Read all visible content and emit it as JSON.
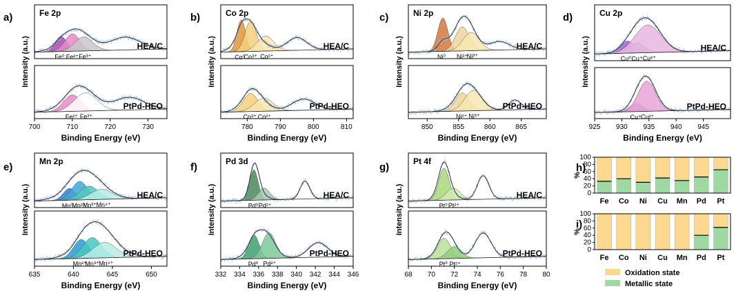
{
  "legend": {
    "oxidation": "Oxidation state",
    "metallic": "Metallic state",
    "colors": {
      "oxidation": "#fcd98e",
      "metallic": "#9fd8a0"
    }
  },
  "chart_data": [
    {
      "id": "a",
      "type": "line",
      "label": "a)",
      "title": "Fe 2p",
      "xlabel": "Binding Energy (eV)",
      "ylabel": "Intensity (a.u.)",
      "xlim": [
        700,
        735
      ],
      "x_ticks": [
        "700",
        "710",
        "720",
        "730"
      ],
      "x_tick_values": [
        700,
        710,
        720,
        730
      ],
      "samples": [
        {
          "name": "HEA/C",
          "peaks": [
            {
              "label": "Fe⁰",
              "center": 707,
              "width": 1.6,
              "height": 0.45,
              "color": "#a34fb1"
            },
            {
              "label": "Fe²⁺",
              "center": 710,
              "width": 2.0,
              "height": 0.52,
              "color": "#e88ac8"
            },
            {
              "label": "Fe³⁺",
              "center": 713,
              "width": 2.4,
              "height": 0.42,
              "color": "#c8c8c8"
            }
          ],
          "envelope": [
            {
              "center": 711,
              "width": 4,
              "height": 0.55
            },
            {
              "center": 724,
              "width": 4,
              "height": 0.45
            }
          ]
        },
        {
          "name": "PtPd-HEO",
          "peaks": [
            {
              "label": "Fe²⁺",
              "center": 710,
              "width": 2.3,
              "height": 0.5,
              "color": "#e88ac8"
            },
            {
              "label": "Fe³⁺",
              "center": 713.5,
              "width": 3,
              "height": 0.55,
              "color": "#ffffff"
            }
          ],
          "envelope": [
            {
              "center": 712,
              "width": 4,
              "height": 0.65
            },
            {
              "center": 725,
              "width": 4,
              "height": 0.45
            }
          ]
        }
      ]
    },
    {
      "id": "b",
      "type": "line",
      "label": "b)",
      "title": "Co 2p",
      "xlabel": "Binding Energy (eV)",
      "ylabel": "Intensity (a.u.)",
      "xlim": [
        772,
        812
      ],
      "x_ticks": [
        "780",
        "790",
        "800",
        "810"
      ],
      "x_tick_values": [
        780,
        790,
        800,
        810
      ],
      "samples": [
        {
          "name": "HEA/C",
          "peaks": [
            {
              "label": "Co⁰",
              "center": 778.2,
              "width": 1.3,
              "height": 0.95,
              "color": "#e2973a"
            },
            {
              "label": "Co³⁺",
              "center": 781,
              "width": 1.7,
              "height": 0.9,
              "color": "#f4d17a"
            },
            {
              "label": "Co²⁺",
              "center": 785.5,
              "width": 2.5,
              "height": 0.45,
              "color": "#f6e6b0"
            }
          ],
          "envelope": [
            {
              "center": 780,
              "width": 3,
              "height": 0.8
            },
            {
              "center": 795,
              "width": 3,
              "height": 0.45
            }
          ]
        },
        {
          "name": "PtPd-HEO",
          "peaks": [
            {
              "label": "Co³⁺",
              "center": 781,
              "width": 2.2,
              "height": 0.55,
              "color": "#f4d17a"
            },
            {
              "label": "Co²⁺",
              "center": 785,
              "width": 2.8,
              "height": 0.4,
              "color": "#f6e6b0"
            }
          ],
          "envelope": [
            {
              "center": 781.5,
              "width": 3,
              "height": 0.6
            },
            {
              "center": 797,
              "width": 3.5,
              "height": 0.4
            }
          ]
        }
      ]
    },
    {
      "id": "c",
      "type": "line",
      "label": "c)",
      "title": "Ni 2p",
      "xlabel": "Binding Energy (eV)",
      "ylabel": "Intensity (a.u.)",
      "xlim": [
        847,
        869
      ],
      "x_ticks": [
        "850",
        "855",
        "860",
        "865"
      ],
      "x_tick_values": [
        850,
        855,
        860,
        865
      ],
      "samples": [
        {
          "name": "HEA/C",
          "peaks": [
            {
              "label": "Ni⁰",
              "center": 852.5,
              "width": 0.8,
              "height": 1.0,
              "color": "#d2783c"
            },
            {
              "label": "Ni²⁺",
              "center": 855.6,
              "width": 1.1,
              "height": 0.72,
              "color": "#f0d49a"
            },
            {
              "label": "Ni³⁺",
              "center": 857,
              "width": 1.3,
              "height": 0.55,
              "color": "#f6e6b0"
            }
          ],
          "envelope": [
            {
              "center": 855.8,
              "width": 1.6,
              "height": 0.9
            },
            {
              "center": 861.5,
              "width": 1.6,
              "height": 0.3
            }
          ]
        },
        {
          "name": "PtPd-HEO",
          "peaks": [
            {
              "label": "Ni²⁺",
              "center": 855.6,
              "width": 1.1,
              "height": 0.55,
              "color": "#f0d49a"
            },
            {
              "label": "Ni³⁺",
              "center": 857.4,
              "width": 1.4,
              "height": 0.62,
              "color": "#f6e6b0"
            }
          ],
          "envelope": [
            {
              "center": 856.5,
              "width": 1.8,
              "height": 0.7
            },
            {
              "center": 864,
              "width": 1,
              "height": 0.35
            }
          ]
        }
      ]
    },
    {
      "id": "d",
      "type": "line",
      "label": "d)",
      "title": "Cu 2p",
      "xlabel": "Binding Energy (eV)",
      "ylabel": "Intensity (a.u.)",
      "xlim": [
        925,
        950
      ],
      "x_ticks": [
        "925",
        "930",
        "935",
        "940",
        "945"
      ],
      "x_tick_values": [
        925,
        930,
        935,
        940,
        945
      ],
      "samples": [
        {
          "name": "HEA/C",
          "peaks": [
            {
              "label": "Cu⁰",
              "center": 931,
              "width": 1.4,
              "height": 0.35,
              "color": "#9f5fd0"
            },
            {
              "label": "Cu⁺",
              "center": 932.8,
              "width": 1.4,
              "height": 0.3,
              "color": "#c09be0"
            },
            {
              "label": "Cu²⁺",
              "center": 934.8,
              "width": 2.4,
              "height": 0.8,
              "color": "#e8b6e0"
            }
          ],
          "envelope": [
            {
              "center": 934.5,
              "width": 2.5,
              "height": 0.9
            }
          ]
        },
        {
          "name": "PtPd-HEO",
          "peaks": [
            {
              "label": "Cu⁺",
              "center": 932.7,
              "width": 1.2,
              "height": 0.25,
              "color": "#d070c8"
            },
            {
              "label": "Cu²⁺",
              "center": 934.6,
              "width": 1.6,
              "height": 0.95,
              "color": "#eaa3da"
            }
          ],
          "envelope": [
            {
              "center": 934.4,
              "width": 1.8,
              "height": 1.0
            }
          ]
        }
      ]
    },
    {
      "id": "e",
      "type": "line",
      "label": "e)",
      "title": "Mn 2p",
      "xlabel": "Binding Energy (eV)",
      "ylabel": "Intensity (a.u.)",
      "xlim": [
        635,
        652
      ],
      "x_ticks": [
        "635",
        "640",
        "645",
        "650"
      ],
      "x_tick_values": [
        635,
        640,
        645,
        650
      ],
      "samples": [
        {
          "name": "HEA/C",
          "peaks": [
            {
              "label": "Mn⁰",
              "center": 639.5,
              "width": 0.8,
              "height": 0.35,
              "color": "#2f7fc8"
            },
            {
              "label": "Mn²⁺",
              "center": 640.8,
              "width": 1.0,
              "height": 0.55,
              "color": "#3fa8d8"
            },
            {
              "label": "Mn³⁺",
              "center": 642,
              "width": 1.2,
              "height": 0.4,
              "color": "#50c8c0"
            },
            {
              "label": "Mn⁴⁺",
              "center": 643.6,
              "width": 1.4,
              "height": 0.3,
              "color": "#b8ece8"
            }
          ],
          "envelope": [
            {
              "center": 641.5,
              "width": 2.2,
              "height": 0.75
            }
          ]
        },
        {
          "name": "PtPd-HEO",
          "peaks": [
            {
              "label": "Mn²⁺",
              "center": 641,
              "width": 1.0,
              "height": 0.55,
              "color": "#2e9ad0"
            },
            {
              "label": "Mn³⁺",
              "center": 642.4,
              "width": 1.2,
              "height": 0.6,
              "color": "#48c8c0"
            },
            {
              "label": "Mn⁴⁺",
              "center": 644,
              "width": 1.5,
              "height": 0.45,
              "color": "#b8ece8"
            }
          ],
          "envelope": [
            {
              "center": 643,
              "width": 2.2,
              "height": 0.95
            }
          ]
        }
      ]
    },
    {
      "id": "f",
      "type": "line",
      "label": "f)",
      "title": "Pd 3d",
      "xlabel": "Binding Energy (eV)",
      "ylabel": "Intensity (a.u.)",
      "xlim": [
        332,
        346
      ],
      "x_ticks": [
        "332",
        "334",
        "336",
        "338",
        "340",
        "342",
        "344",
        "346"
      ],
      "x_tick_values": [
        332,
        334,
        336,
        338,
        340,
        342,
        344,
        346
      ],
      "samples": [
        {
          "name": "HEA/C",
          "peaks": [
            {
              "label": "Pd⁰",
              "center": 335.5,
              "width": 0.45,
              "height": 0.9,
              "color": "#4a8a5c"
            },
            {
              "label": "Pd²⁺",
              "center": 336.6,
              "width": 0.6,
              "height": 0.35,
              "color": "#a8c8b0"
            }
          ],
          "envelope": [
            {
              "center": 335.6,
              "width": 0.5,
              "height": 1.0
            },
            {
              "center": 340.9,
              "width": 0.5,
              "height": 0.62
            }
          ]
        },
        {
          "name": "PtPd-HEO",
          "peaks": [
            {
              "label": "Pd⁰",
              "center": 335.5,
              "width": 0.55,
              "height": 0.7,
              "color": "#3fa070"
            },
            {
              "label": "Pd²⁺",
              "center": 337.1,
              "width": 0.7,
              "height": 0.75,
              "color": "#7ec89a"
            }
          ],
          "envelope": [
            {
              "center": 336.3,
              "width": 1.1,
              "height": 0.8
            },
            {
              "center": 342.3,
              "width": 1.0,
              "height": 0.5
            }
          ]
        }
      ]
    },
    {
      "id": "g",
      "type": "line",
      "label": "g)",
      "title": "Pt 4f",
      "xlabel": "Binding Energy (eV)",
      "ylabel": "Intensity (a.u.)",
      "xlim": [
        68,
        80
      ],
      "x_ticks": [
        "68",
        "70",
        "72",
        "74",
        "76",
        "78",
        "80"
      ],
      "x_tick_values": [
        68,
        70,
        72,
        74,
        76,
        78,
        80
      ],
      "samples": [
        {
          "name": "HEA/C",
          "peaks": [
            {
              "label": "Pt⁰",
              "center": 71.1,
              "width": 0.45,
              "height": 0.95,
              "color": "#a8d87a"
            },
            {
              "label": "Pt²⁺",
              "center": 71.9,
              "width": 0.6,
              "height": 0.35,
              "color": "#d2ecb0"
            }
          ],
          "envelope": [
            {
              "center": 71.1,
              "width": 0.5,
              "height": 1.0
            },
            {
              "center": 74.5,
              "width": 0.5,
              "height": 0.82
            }
          ]
        },
        {
          "name": "PtPd-HEO",
          "peaks": [
            {
              "label": "Pt⁰",
              "center": 71.1,
              "width": 0.55,
              "height": 0.6,
              "color": "#b8e09a"
            },
            {
              "label": "Pt²⁺",
              "center": 72,
              "width": 0.6,
              "height": 0.35,
              "color": "#8fce7a"
            }
          ],
          "envelope": [
            {
              "center": 71.3,
              "width": 0.7,
              "height": 0.7
            },
            {
              "center": 74.5,
              "width": 0.7,
              "height": 0.85
            }
          ]
        }
      ]
    },
    {
      "id": "h",
      "type": "bar",
      "label": "h)",
      "categories": [
        "Fe",
        "Co",
        "Ni",
        "Cu",
        "Mn",
        "Pd",
        "Pt"
      ],
      "ylabel": "%",
      "ylim": [
        0,
        100
      ],
      "y_ticks": [
        "0",
        "20",
        "40",
        "60",
        "80",
        "100"
      ],
      "series": [
        {
          "name": "Metallic state",
          "values": [
            33,
            40,
            30,
            42,
            35,
            45,
            65
          ]
        },
        {
          "name": "Oxidation state",
          "values": [
            67,
            60,
            70,
            58,
            65,
            55,
            35
          ]
        }
      ]
    },
    {
      "id": "i",
      "type": "bar",
      "label": "i)",
      "categories": [
        "Fe",
        "Co",
        "Ni",
        "Cu",
        "Mn",
        "Pd",
        "Pt"
      ],
      "ylabel": "%",
      "ylim": [
        0,
        100
      ],
      "y_ticks": [
        "0",
        "20",
        "40",
        "60",
        "80",
        "100"
      ],
      "series": [
        {
          "name": "Metallic state",
          "values": [
            0,
            0,
            0,
            0,
            0,
            40,
            62
          ]
        },
        {
          "name": "Oxidation state",
          "values": [
            100,
            100,
            100,
            100,
            100,
            60,
            38
          ]
        }
      ]
    }
  ]
}
